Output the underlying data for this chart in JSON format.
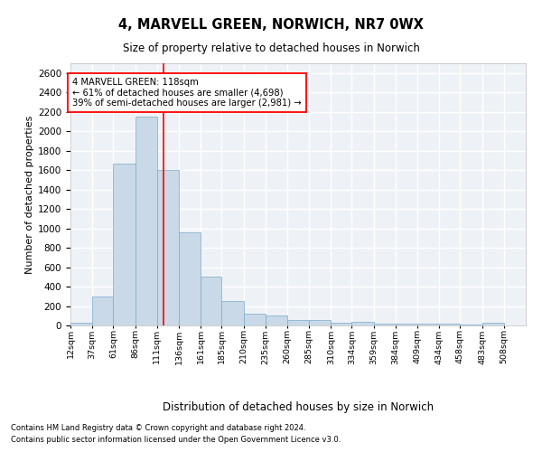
{
  "title_line1": "4, MARVELL GREEN, NORWICH, NR7 0WX",
  "title_line2": "Size of property relative to detached houses in Norwich",
  "xlabel": "Distribution of detached houses by size in Norwich",
  "ylabel": "Number of detached properties",
  "footnote1": "Contains HM Land Registry data © Crown copyright and database right 2024.",
  "footnote2": "Contains public sector information licensed under the Open Government Licence v3.0.",
  "annotation_line1": "4 MARVELL GREEN: 118sqm",
  "annotation_line2": "← 61% of detached houses are smaller (4,698)",
  "annotation_line3": "39% of semi-detached houses are larger (2,981) →",
  "bar_color": "#c9d9e8",
  "bar_edge_color": "#7aaac8",
  "ref_line_color": "red",
  "ref_line_x": 118,
  "categories": [
    "12sqm",
    "37sqm",
    "61sqm",
    "86sqm",
    "111sqm",
    "136sqm",
    "161sqm",
    "185sqm",
    "210sqm",
    "235sqm",
    "260sqm",
    "285sqm",
    "310sqm",
    "334sqm",
    "359sqm",
    "384sqm",
    "409sqm",
    "434sqm",
    "458sqm",
    "483sqm",
    "508sqm"
  ],
  "bin_edges": [
    12,
    37,
    61,
    86,
    111,
    136,
    161,
    185,
    210,
    235,
    260,
    285,
    310,
    334,
    359,
    384,
    409,
    434,
    458,
    483,
    508,
    533
  ],
  "values": [
    28,
    300,
    1670,
    2150,
    1600,
    960,
    505,
    250,
    120,
    100,
    55,
    55,
    30,
    35,
    20,
    22,
    20,
    15,
    10,
    28,
    0
  ],
  "ylim": [
    0,
    2700
  ],
  "yticks": [
    0,
    200,
    400,
    600,
    800,
    1000,
    1200,
    1400,
    1600,
    1800,
    2000,
    2200,
    2400,
    2600
  ],
  "bg_color": "#eef2f7",
  "grid_color": "white",
  "annotation_box_color": "white",
  "annotation_box_edge": "red"
}
